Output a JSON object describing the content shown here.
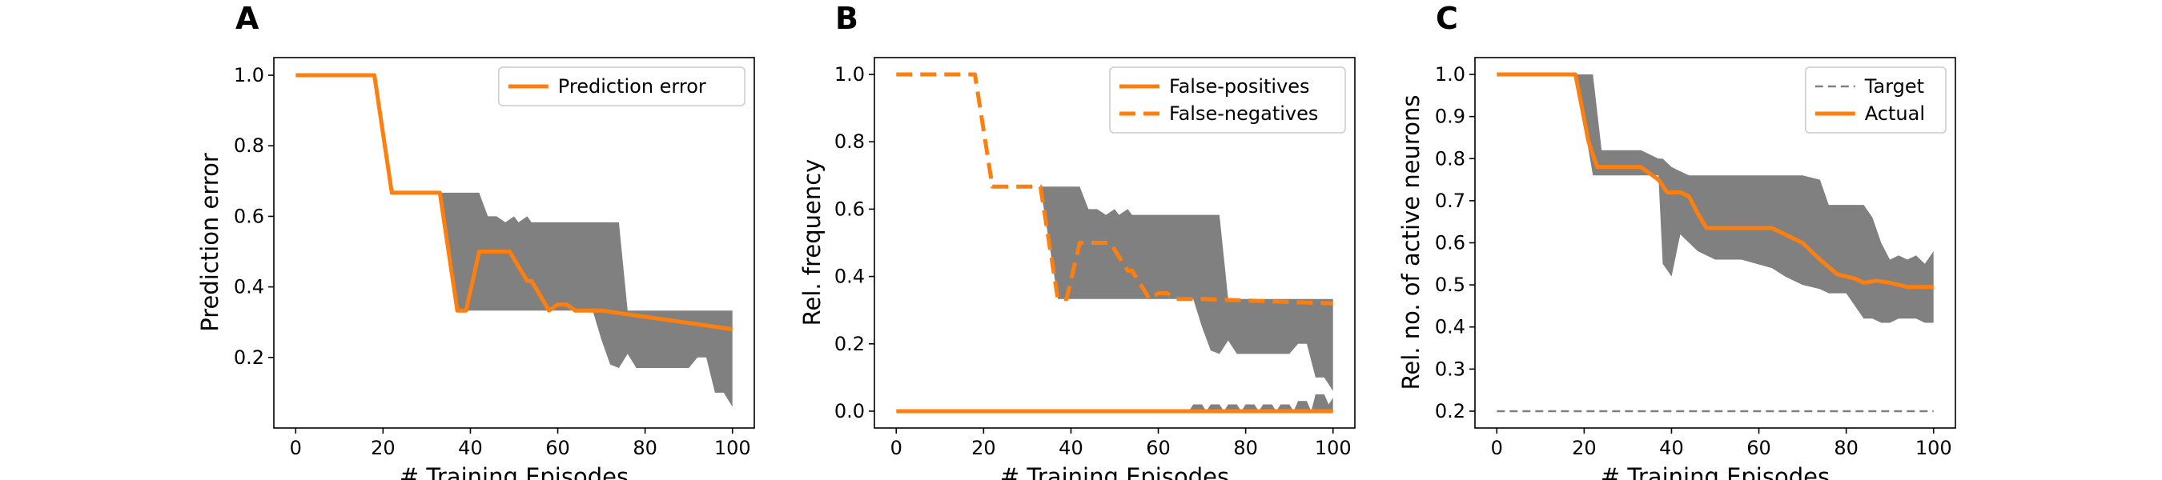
{
  "chart_data": [
    {
      "panel": "A",
      "type": "line",
      "xlabel": "# Training Episodes",
      "ylabel": "Prediction error",
      "xlim": [
        -5,
        105
      ],
      "ylim": [
        0.0,
        1.05
      ],
      "xticks": [
        0,
        20,
        40,
        60,
        80,
        100
      ],
      "yticks": [
        0.2,
        0.4,
        0.6,
        0.8,
        1.0
      ],
      "xtick_labels": [
        "0",
        "20",
        "40",
        "60",
        "80",
        "100"
      ],
      "ytick_labels": [
        "0.2",
        "0.4",
        "0.6",
        "0.8",
        "1.0"
      ],
      "grid": false,
      "legend": {
        "position": "top-right",
        "entries": [
          "Prediction error"
        ]
      },
      "colors": {
        "line": "#ff7f0e",
        "band": "#808080"
      },
      "series": [
        {
          "name": "Prediction error",
          "style": "solid",
          "x": [
            0,
            18,
            22,
            33,
            37,
            39,
            42,
            49,
            53,
            54,
            56,
            58,
            60,
            62,
            64,
            70,
            100
          ],
          "y": [
            1.0,
            1.0,
            0.667,
            0.667,
            0.333,
            0.333,
            0.5,
            0.5,
            0.417,
            0.417,
            0.375,
            0.333,
            0.35,
            0.35,
            0.333,
            0.333,
            0.28
          ]
        }
      ],
      "band": {
        "x": [
          33,
          37,
          42,
          44,
          46,
          48,
          50,
          51,
          53,
          54,
          56,
          58,
          60,
          66,
          68,
          70,
          72,
          74,
          76,
          78,
          80,
          82,
          84,
          86,
          88,
          90,
          92,
          94,
          96,
          98,
          100
        ],
        "upper": [
          0.667,
          0.667,
          0.667,
          0.6,
          0.6,
          0.583,
          0.6,
          0.583,
          0.6,
          0.583,
          0.583,
          0.583,
          0.583,
          0.583,
          0.583,
          0.583,
          0.583,
          0.583,
          0.333,
          0.333,
          0.333,
          0.333,
          0.333,
          0.333,
          0.333,
          0.333,
          0.333,
          0.333,
          0.333,
          0.333,
          0.333
        ],
        "lower": [
          0.667,
          0.333,
          0.333,
          0.333,
          0.333,
          0.333,
          0.333,
          0.333,
          0.333,
          0.333,
          0.333,
          0.333,
          0.333,
          0.333,
          0.333,
          0.25,
          0.18,
          0.17,
          0.21,
          0.17,
          0.17,
          0.17,
          0.17,
          0.17,
          0.17,
          0.17,
          0.2,
          0.2,
          0.1,
          0.1,
          0.06
        ]
      }
    },
    {
      "panel": "B",
      "type": "line",
      "xlabel": "# Training Episodes",
      "ylabel": "Rel. frequency",
      "xlim": [
        -5,
        105
      ],
      "ylim": [
        -0.05,
        1.05
      ],
      "xticks": [
        0,
        20,
        40,
        60,
        80,
        100
      ],
      "yticks": [
        0.0,
        0.2,
        0.4,
        0.6,
        0.8,
        1.0
      ],
      "xtick_labels": [
        "0",
        "20",
        "40",
        "60",
        "80",
        "100"
      ],
      "ytick_labels": [
        "0.0",
        "0.2",
        "0.4",
        "0.6",
        "0.8",
        "1.0"
      ],
      "grid": false,
      "legend": {
        "position": "top-right",
        "entries": [
          "False-positives",
          "False-negatives"
        ]
      },
      "colors": {
        "line": "#ff7f0e",
        "band": "#808080"
      },
      "series": [
        {
          "name": "False-positives",
          "style": "solid",
          "x": [
            0,
            100
          ],
          "y": [
            0.0,
            0.0
          ]
        },
        {
          "name": "False-negatives",
          "style": "dashed",
          "x": [
            0,
            18,
            22,
            33,
            37,
            39,
            42,
            49,
            53,
            54,
            56,
            58,
            60,
            62,
            64,
            70,
            100
          ],
          "y": [
            1.0,
            1.0,
            0.667,
            0.667,
            0.333,
            0.333,
            0.5,
            0.5,
            0.417,
            0.417,
            0.375,
            0.333,
            0.35,
            0.35,
            0.333,
            0.333,
            0.32
          ]
        }
      ],
      "bands": [
        {
          "x": [
            33,
            37,
            42,
            44,
            46,
            48,
            50,
            51,
            53,
            54,
            56,
            58,
            60,
            66,
            68,
            70,
            72,
            74,
            76,
            78,
            80,
            82,
            84,
            86,
            88,
            90,
            92,
            94,
            96,
            98,
            100
          ],
          "upper": [
            0.667,
            0.667,
            0.667,
            0.6,
            0.6,
            0.583,
            0.6,
            0.583,
            0.6,
            0.583,
            0.583,
            0.583,
            0.583,
            0.583,
            0.583,
            0.583,
            0.583,
            0.583,
            0.333,
            0.333,
            0.333,
            0.333,
            0.333,
            0.333,
            0.333,
            0.333,
            0.333,
            0.333,
            0.333,
            0.333,
            0.333
          ],
          "lower": [
            0.667,
            0.333,
            0.333,
            0.333,
            0.333,
            0.333,
            0.333,
            0.333,
            0.333,
            0.333,
            0.333,
            0.333,
            0.333,
            0.333,
            0.333,
            0.25,
            0.18,
            0.17,
            0.21,
            0.17,
            0.17,
            0.17,
            0.17,
            0.17,
            0.17,
            0.17,
            0.2,
            0.2,
            0.1,
            0.1,
            0.06
          ]
        },
        {
          "x": [
            67,
            68,
            70,
            71,
            72,
            74,
            75,
            76,
            78,
            79,
            80,
            82,
            83,
            84,
            86,
            87,
            88,
            90,
            91,
            92,
            94,
            95,
            96,
            98,
            99,
            100
          ],
          "upper": [
            0.0,
            0.02,
            0.02,
            0.0,
            0.02,
            0.02,
            0.0,
            0.02,
            0.02,
            0.0,
            0.02,
            0.02,
            0.0,
            0.02,
            0.02,
            0.0,
            0.02,
            0.02,
            0.0,
            0.03,
            0.03,
            0.0,
            0.05,
            0.05,
            0.02,
            0.04
          ],
          "lower": [
            0.0,
            0.0,
            0.0,
            0.0,
            0.0,
            0.0,
            0.0,
            0.0,
            0.0,
            0.0,
            0.0,
            0.0,
            0.0,
            0.0,
            0.0,
            0.0,
            0.0,
            0.0,
            0.0,
            0.0,
            0.0,
            0.0,
            0.0,
            0.0,
            0.0,
            0.0
          ]
        }
      ]
    },
    {
      "panel": "C",
      "type": "line",
      "xlabel": "# Training Episodes",
      "ylabel": "Rel. no. of active neurons",
      "xlim": [
        -5,
        105
      ],
      "ylim": [
        0.16,
        1.04
      ],
      "xticks": [
        0,
        20,
        40,
        60,
        80,
        100
      ],
      "yticks": [
        0.2,
        0.3,
        0.4,
        0.5,
        0.6,
        0.7,
        0.8,
        0.9,
        1.0
      ],
      "xtick_labels": [
        "0",
        "20",
        "40",
        "60",
        "80",
        "100"
      ],
      "ytick_labels": [
        "0.2",
        "0.3",
        "0.4",
        "0.5",
        "0.6",
        "0.7",
        "0.8",
        "0.9",
        "1.0"
      ],
      "grid": false,
      "legend": {
        "position": "top-right",
        "entries": [
          "Target",
          "Actual"
        ]
      },
      "colors": {
        "actual": "#ff7f0e",
        "target": "#808080",
        "band": "#808080"
      },
      "series": [
        {
          "name": "Target",
          "style": "dashed",
          "x": [
            0,
            100
          ],
          "y": [
            0.2,
            0.2
          ]
        },
        {
          "name": "Actual",
          "style": "solid",
          "x": [
            0,
            18,
            21,
            23,
            33,
            37,
            39,
            40,
            42,
            44,
            46,
            48,
            56,
            63,
            65,
            68,
            70,
            74,
            78,
            82,
            84,
            87,
            90,
            94,
            100
          ],
          "y": [
            1.0,
            1.0,
            0.84,
            0.78,
            0.78,
            0.75,
            0.72,
            0.72,
            0.72,
            0.71,
            0.67,
            0.635,
            0.635,
            0.635,
            0.625,
            0.61,
            0.6,
            0.56,
            0.525,
            0.515,
            0.505,
            0.51,
            0.505,
            0.495,
            0.495
          ]
        }
      ],
      "band": {
        "x": [
          18,
          22,
          24,
          26,
          33,
          37,
          38,
          40,
          42,
          44,
          46,
          50,
          56,
          63,
          66,
          70,
          74,
          76,
          80,
          84,
          86,
          88,
          90,
          92,
          94,
          96,
          98,
          100
        ],
        "upper": [
          1.0,
          1.0,
          0.82,
          0.82,
          0.82,
          0.8,
          0.8,
          0.78,
          0.77,
          0.76,
          0.76,
          0.76,
          0.76,
          0.76,
          0.76,
          0.76,
          0.75,
          0.69,
          0.69,
          0.69,
          0.66,
          0.6,
          0.56,
          0.57,
          0.56,
          0.57,
          0.55,
          0.58
        ],
        "lower": [
          1.0,
          0.76,
          0.76,
          0.76,
          0.76,
          0.76,
          0.55,
          0.52,
          0.62,
          0.6,
          0.58,
          0.56,
          0.56,
          0.54,
          0.52,
          0.5,
          0.49,
          0.48,
          0.48,
          0.42,
          0.42,
          0.41,
          0.41,
          0.42,
          0.42,
          0.42,
          0.41,
          0.41
        ]
      }
    }
  ]
}
